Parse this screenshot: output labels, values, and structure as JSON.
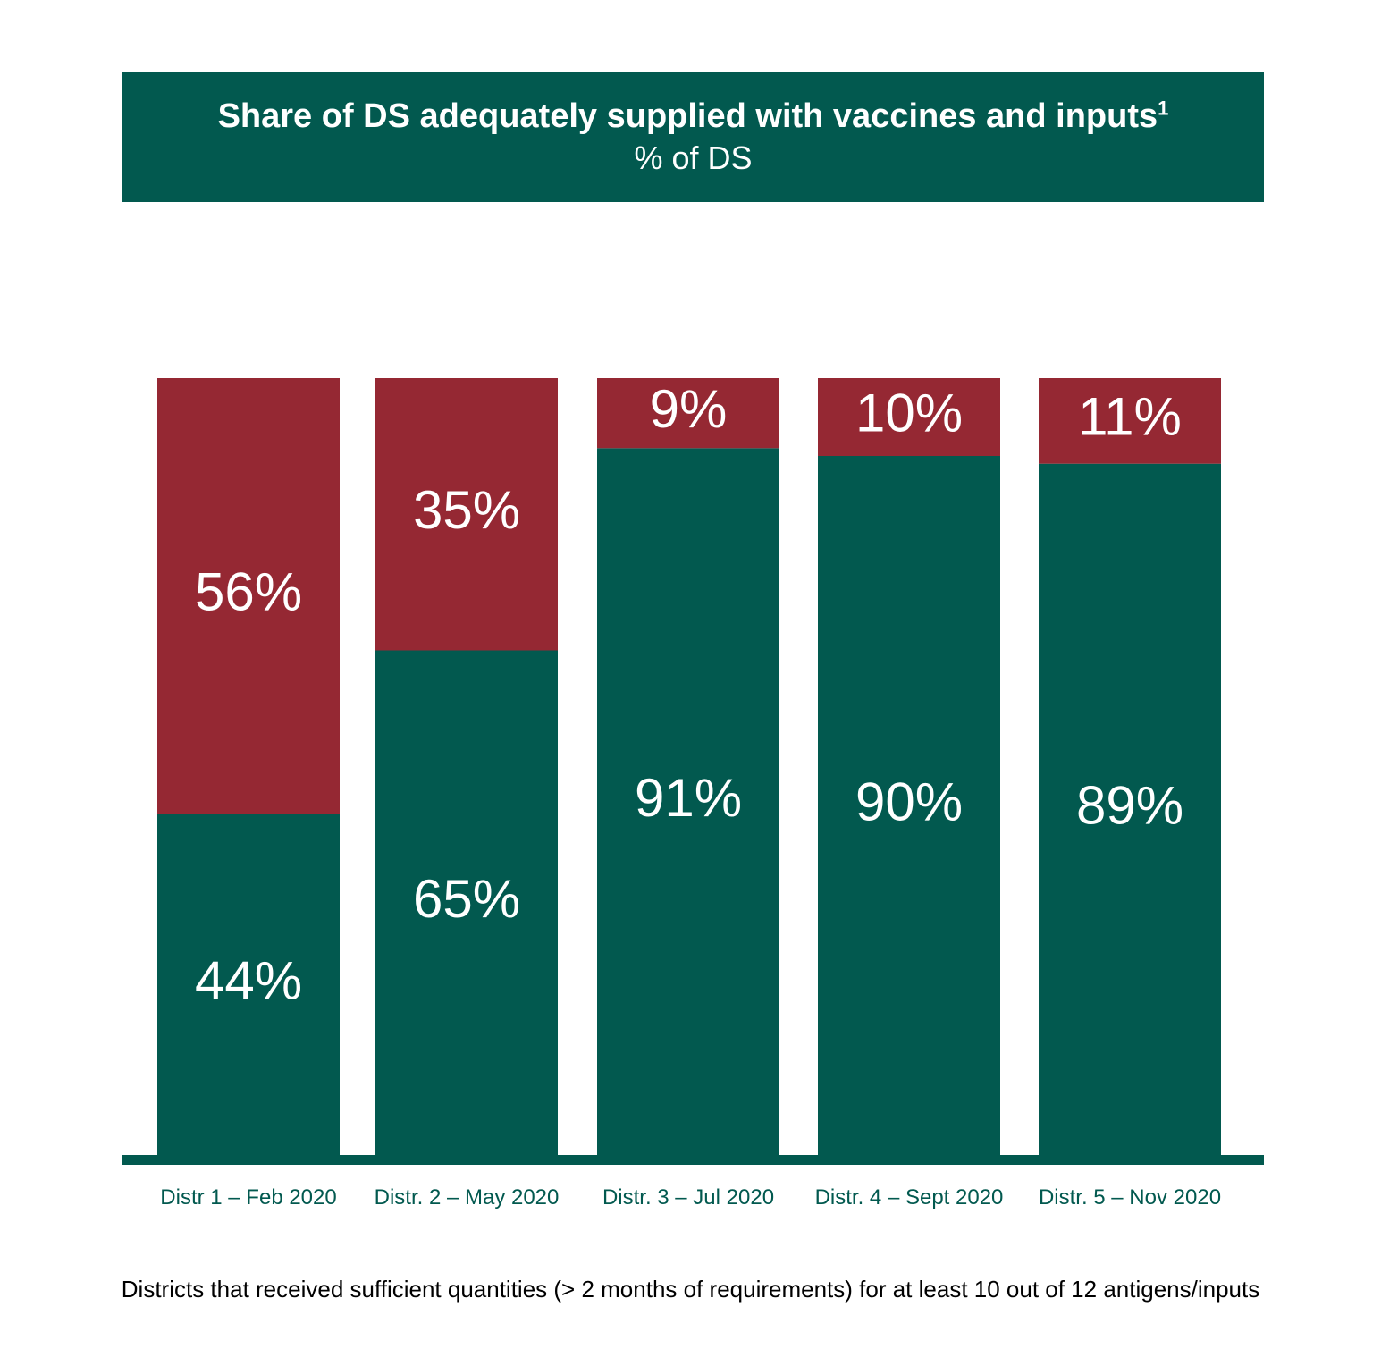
{
  "title": {
    "main": "Share of DS adequately supplied with vaccines and inputs",
    "superscript": "1",
    "subtitle": "% of DS"
  },
  "colors": {
    "supplied": "#02594f",
    "not_supplied": "#952833",
    "axis": "#02594f"
  },
  "chart_data": {
    "type": "bar",
    "stacked": true,
    "categories": [
      "Distr 1 – Feb 2020",
      "Distr. 2 – May 2020",
      "Distr. 3 – Jul 2020",
      "Distr. 4 – Sept 2020",
      "Distr. 5 – Nov 2020"
    ],
    "series": [
      {
        "key": "supplied",
        "values": [
          44,
          65,
          91,
          90,
          89
        ],
        "labels": [
          "44%",
          "65%",
          "91%",
          "90%",
          "89%"
        ]
      },
      {
        "key": "not_supplied",
        "values": [
          56,
          35,
          9,
          10,
          11
        ],
        "labels": [
          "56%",
          "35%",
          "9%",
          "10%",
          "11%"
        ]
      }
    ],
    "ylim": [
      0,
      100
    ],
    "grid": false,
    "legend": "none"
  },
  "footnote": "Districts that received sufficient quantities (> 2 months of requirements) for at least 10 out of 12 antigens/inputs"
}
